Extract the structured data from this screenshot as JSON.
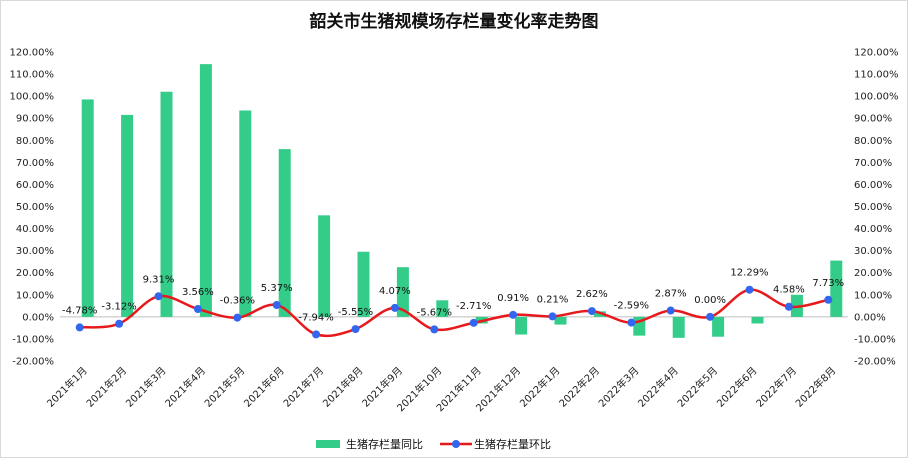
{
  "chart_data": {
    "type": "bar",
    "title": "韶关市生猪规模场存栏量变化率走势图",
    "categories": [
      "2021年1月",
      "2021年2月",
      "2021年3月",
      "2021年4月",
      "2021年5月",
      "2021年6月",
      "2021年7月",
      "2021年8月",
      "2021年9月",
      "2021年10月",
      "2021年11月",
      "2021年12月",
      "2022年1月",
      "2022年2月",
      "2022年3月",
      "2022年4月",
      "2022年5月",
      "2022年6月",
      "2022年7月",
      "2022年8月"
    ],
    "y_ticks": [
      "-20.00%",
      "-10.00%",
      "0.00%",
      "10.00%",
      "20.00%",
      "30.00%",
      "40.00%",
      "50.00%",
      "60.00%",
      "70.00%",
      "80.00%",
      "90.00%",
      "100.00%",
      "110.00%",
      "120.00%"
    ],
    "ylim": [
      -20,
      120
    ],
    "y_unit": "%",
    "grid": false,
    "legend_position": "bottom",
    "series": [
      {
        "name": "生猪存栏量同比",
        "kind": "bar",
        "color": "#33CC88",
        "values": [
          98.5,
          91.5,
          102.0,
          114.5,
          93.5,
          76.0,
          46.0,
          29.5,
          22.5,
          7.5,
          -3.0,
          -8.0,
          -3.5,
          2.5,
          -8.5,
          -9.5,
          -9.0,
          -3.0,
          10.0,
          25.5
        ]
      },
      {
        "name": "生猪存栏量环比",
        "kind": "line",
        "color": "#E8191C",
        "marker_color": "#3366EE",
        "values": [
          -4.78,
          -3.12,
          9.31,
          3.56,
          -0.36,
          5.37,
          -7.94,
          -5.55,
          4.07,
          -5.67,
          -2.71,
          0.91,
          0.21,
          2.62,
          -2.59,
          2.87,
          0.0,
          12.29,
          4.58,
          7.73
        ],
        "labels": [
          "-4.78%",
          "-3.12%",
          "9.31%",
          "3.56%",
          "-0.36%",
          "5.37%",
          "-7.94%",
          "-5.55%",
          "4.07%",
          "-5.67%",
          "-2.71%",
          "0.91%",
          "0.21%",
          "2.62%",
          "-2.59%",
          "2.87%",
          "0.00%",
          "12.29%",
          "4.58%",
          "7.73%"
        ]
      }
    ]
  }
}
